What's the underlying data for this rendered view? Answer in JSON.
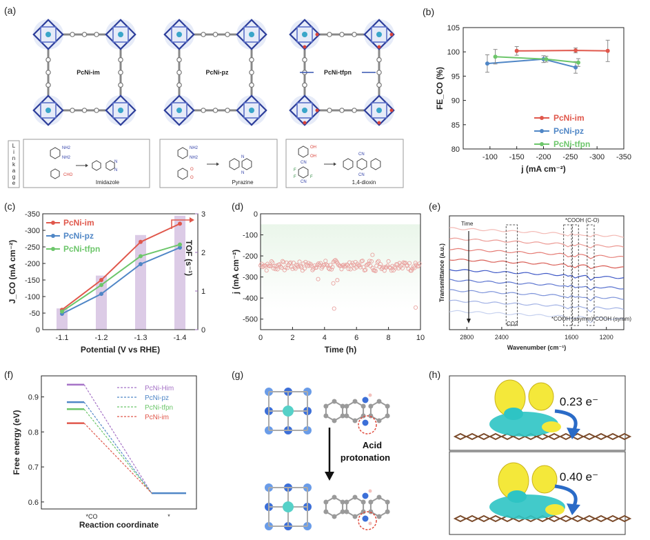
{
  "colors": {
    "im": "#e0574b",
    "pz": "#4f86c6",
    "tfpn": "#6cc66a",
    "him": "#a572c6",
    "bar": "#dccbe6",
    "purple": "#9b6bb8"
  },
  "panels": {
    "a": {
      "label": "(a)",
      "names": [
        "PcNi-im",
        "PcNi-pz",
        "PcNi-tfpn"
      ],
      "linkage_letters": [
        "L",
        "i",
        "n",
        "k",
        "a",
        "g",
        "e"
      ],
      "products": [
        "Imidazole",
        "Pyrazine",
        "1,4-dioxin"
      ],
      "chem_labels": [
        "NH2",
        "NH2",
        "CHO",
        "NH2",
        "NH2",
        "O",
        "O",
        "OH",
        "OH",
        "CN",
        "F",
        "F",
        "F",
        "CN",
        "N",
        "N",
        "CN",
        "CN"
      ]
    },
    "g": {
      "label": "(g)",
      "arrow_text_1": "Acid",
      "arrow_text_2": "protonation"
    },
    "h": {
      "label": "(h)",
      "charge_top": "0.23 e⁻",
      "charge_bottom": "0.40 e⁻"
    }
  },
  "chart_data": [
    {
      "panel": "(b)",
      "type": "line",
      "xlabel": "j (mA cm⁻²)",
      "ylabel": "FE_CO (%)",
      "xlim": [
        -50,
        -350
      ],
      "ylim": [
        80,
        105
      ],
      "xticks": [
        "-100",
        "-150",
        "-200",
        "-250",
        "-300",
        "-350"
      ],
      "yticks": [
        "80",
        "85",
        "90",
        "95",
        "100",
        "105"
      ],
      "legend_position": "bottom-right",
      "series": [
        {
          "name": "PcNi-im",
          "x": [
            -150,
            -260,
            -320
          ],
          "y": [
            100.2,
            100.3,
            100.2
          ],
          "err": [
            0.9,
            0.5,
            2.2
          ]
        },
        {
          "name": "PcNi-pz",
          "x": [
            -95,
            -200,
            -260
          ],
          "y": [
            97.6,
            98.5,
            96.8
          ],
          "err": [
            1.8,
            0.7,
            1.2
          ]
        },
        {
          "name": "PcNi-tfpn",
          "x": [
            -110,
            -205,
            -265
          ],
          "y": [
            99.0,
            98.5,
            97.8
          ],
          "err": [
            1.5,
            0.6,
            0.8
          ]
        }
      ]
    },
    {
      "panel": "(c)",
      "type": "bar+line",
      "xlabel": "Potential (V vs RHE)",
      "ylabel": "J_CO (mA cm⁻²)",
      "y2label": "TOF (s⁻¹)",
      "categories": [
        "-1.1",
        "-1.2",
        "-1.3",
        "-1.4"
      ],
      "ylim": [
        0,
        -350
      ],
      "y2lim": [
        0,
        3
      ],
      "yticks": [
        "-350",
        "-300",
        "-250",
        "-200",
        "-150",
        "-100",
        "-50",
        "0"
      ],
      "y2ticks": [
        "0",
        "1",
        "2",
        "3"
      ],
      "bars_tof": [
        0.55,
        1.4,
        2.45,
        2.95
      ],
      "legend_position": "top-left",
      "series": [
        {
          "name": "PcNi-im",
          "values": [
            -60,
            -150,
            -265,
            -320
          ]
        },
        {
          "name": "PcNi-pz",
          "values": [
            -48,
            -108,
            -198,
            -248
          ]
        },
        {
          "name": "PcNi-tfpn",
          "values": [
            -55,
            -135,
            -222,
            -257
          ]
        }
      ]
    },
    {
      "panel": "(d)",
      "type": "scatter",
      "xlabel": "Time (h)",
      "ylabel": "j (mA cm⁻²)",
      "xlim": [
        0,
        10
      ],
      "ylim": [
        -550,
        0
      ],
      "xticks": [
        "0",
        "2",
        "4",
        "6",
        "8",
        "10"
      ],
      "yticks": [
        "0",
        "-100",
        "-200",
        "-300",
        "-400",
        "-500"
      ],
      "mean": -245,
      "spread": 20,
      "outliers": [
        [
          4.55,
          -330
        ],
        [
          4.6,
          -450
        ],
        [
          4.8,
          -315
        ],
        [
          9.7,
          -445
        ],
        [
          3.6,
          -310
        ],
        [
          7.0,
          -195
        ]
      ]
    },
    {
      "panel": "(e)",
      "type": "spectra",
      "xlabel": "Wavenumber (cm⁻¹)",
      "ylabel": "Transmittance (a.u.)",
      "xlim": [
        3000,
        1000
      ],
      "xticks": [
        "2800",
        "2400",
        "1600",
        "1200"
      ],
      "n_traces": 9,
      "annotations": [
        "Time",
        "*COOH (C-O)",
        "CO2",
        "*COOH (asymm)",
        "*COOH (symm)"
      ]
    },
    {
      "panel": "(f)",
      "type": "energy-diagram",
      "xlabel": "Reaction coordinate",
      "ylabel": "Free energy (eV)",
      "ylim": [
        0.58,
        0.96
      ],
      "yticks": [
        "0.6",
        "0.7",
        "0.8",
        "0.9"
      ],
      "xticks": [
        "*CO",
        "*"
      ],
      "final_level": 0.625,
      "series": [
        {
          "name": "PcNi-Him",
          "level": 0.935
        },
        {
          "name": "PcNi-pz",
          "level": 0.885
        },
        {
          "name": "PcNi-tfpn",
          "level": 0.865
        },
        {
          "name": "PcNi-im",
          "level": 0.825
        }
      ]
    }
  ]
}
